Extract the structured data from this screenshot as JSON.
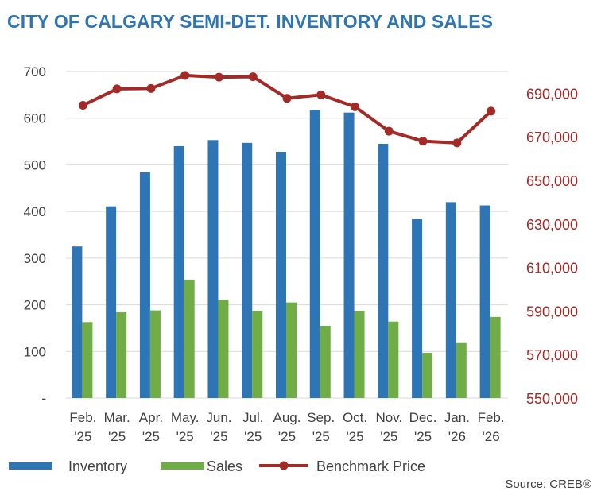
{
  "chart_data": {
    "type": "bar",
    "title": "CITY OF CALGARY SEMI-DET. INVENTORY AND SALES",
    "categories": [
      [
        "Feb.",
        "'25"
      ],
      [
        "Mar.",
        "'25"
      ],
      [
        "Apr.",
        "'25"
      ],
      [
        "May.",
        "'25"
      ],
      [
        "Jun.",
        "'25"
      ],
      [
        "Jul.",
        "'25"
      ],
      [
        "Aug.",
        "'25"
      ],
      [
        "Sep.",
        "'25"
      ],
      [
        "Oct.",
        "'25"
      ],
      [
        "Nov.",
        "'25"
      ],
      [
        "Dec.",
        "'25"
      ],
      [
        "Jan.",
        "'26"
      ],
      [
        "Feb.",
        "'26"
      ]
    ],
    "series": [
      {
        "name": "Inventory",
        "type": "bar",
        "axis": "left",
        "color": "#2e75b6",
        "values": [
          325,
          411,
          484,
          540,
          553,
          547,
          528,
          618,
          612,
          545,
          384,
          420,
          413
        ]
      },
      {
        "name": "Sales",
        "type": "bar",
        "axis": "left",
        "color": "#70ad47",
        "values": [
          163,
          184,
          188,
          254,
          211,
          187,
          205,
          155,
          186,
          164,
          97,
          118,
          174
        ]
      },
      {
        "name": "Benchmark Price",
        "type": "line",
        "axis": "right",
        "color": "#a32a26",
        "values": [
          684500,
          692000,
          692200,
          698200,
          697400,
          697600,
          687700,
          689300,
          683800,
          672600,
          668000,
          667200,
          681800
        ]
      }
    ],
    "left_axis": {
      "min": 0,
      "max": 700,
      "ticks": [
        0,
        100,
        200,
        300,
        400,
        500,
        600,
        700
      ],
      "tick_labels": [
        "-",
        "100",
        "200",
        "300",
        "400",
        "500",
        "600",
        "700"
      ]
    },
    "right_axis": {
      "min": 550000,
      "max": 700000,
      "ticks": [
        550000,
        570000,
        590000,
        610000,
        630000,
        650000,
        670000,
        690000
      ],
      "tick_labels": [
        "550,000",
        "570,000",
        "590,000",
        "610,000",
        "630,000",
        "650,000",
        "670,000",
        "690,000"
      ]
    },
    "grid": true,
    "legend_position": "bottom-left",
    "source": "Source: CREB®"
  }
}
